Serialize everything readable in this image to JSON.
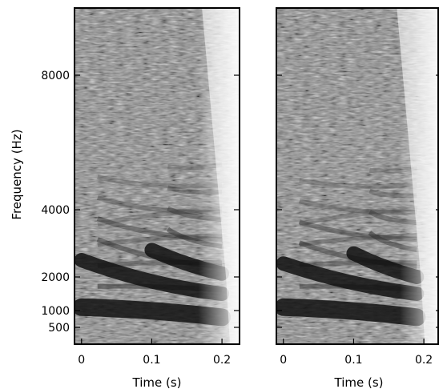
{
  "chart_data": [
    {
      "type": "heatmap",
      "subtype": "spectrogram",
      "xlabel": "Time (s)",
      "ylabel": "Frequency (Hz)",
      "xlim": [
        -0.01,
        0.225
      ],
      "ylim": [
        0,
        10000
      ],
      "xticks": [
        0,
        0.1,
        0.2
      ],
      "xticklabels": [
        "0",
        "0.1",
        "0.2"
      ],
      "yticks": [
        500,
        1000,
        2000,
        4000,
        8000
      ],
      "yticklabels": [
        "500",
        "1000",
        "2000",
        "4000",
        "8000"
      ],
      "colormap": "grayscale (dark = high energy)",
      "voiced_end_time": 0.2,
      "formants": [
        {
          "name": "F1",
          "start": [
            0,
            1100
          ],
          "end": [
            0.2,
            800
          ]
        },
        {
          "name": "F2",
          "start": [
            0,
            2500
          ],
          "end": [
            0.2,
            1500
          ]
        },
        {
          "name": "F3",
          "start": [
            0.1,
            2800
          ],
          "end": [
            0.2,
            2100
          ]
        }
      ],
      "grid": false
    },
    {
      "type": "heatmap",
      "subtype": "spectrogram",
      "xlabel": "Time (s)",
      "xlim": [
        -0.01,
        0.225
      ],
      "ylim": [
        0,
        10000
      ],
      "xticks": [
        0,
        0.1,
        0.2
      ],
      "xticklabels": [
        "0",
        "0.1",
        "0.2"
      ],
      "yticks": [
        500,
        1000,
        2000,
        4000,
        8000
      ],
      "yticklabels": [],
      "colormap": "grayscale (dark = high energy)",
      "voiced_end_time": 0.19,
      "formants": [
        {
          "name": "F1",
          "start": [
            0,
            1100
          ],
          "end": [
            0.19,
            800
          ]
        },
        {
          "name": "F2",
          "start": [
            0,
            2400
          ],
          "end": [
            0.19,
            1500
          ]
        },
        {
          "name": "F3",
          "start": [
            0.1,
            2700
          ],
          "end": [
            0.19,
            2000
          ]
        }
      ],
      "grid": false
    }
  ]
}
